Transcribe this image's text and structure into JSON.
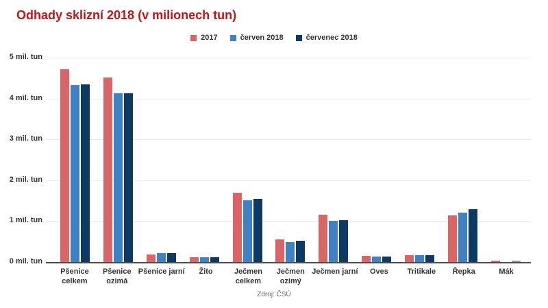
{
  "title": "Odhady sklizní 2018 (v milionech tun)",
  "source": "Zdroj: ČSÚ",
  "colors": {
    "title": "#c41414",
    "grid": "#e9e9e9",
    "axis_line": "#4d4d4d",
    "text": "#333333",
    "series_2017": "#d96666",
    "series_cerven": "#4081c4",
    "series_cervenec": "#0d3a63",
    "mak_cervenec_override": "#999999"
  },
  "chart_data": {
    "type": "bar",
    "title": "Odhady sklizní 2018 (v milionech tun)",
    "categories": [
      "Pšenice\ncelkem",
      "Pšenice\nozimá",
      "Pšenice jarní",
      "Žito",
      "Ječmen\ncelkem",
      "Ječmen\nozimý",
      "Ječmen jarní",
      "Oves",
      "Tritikale",
      "Řepka",
      "Mák"
    ],
    "series": [
      {
        "name": "2017",
        "color": "#d96666",
        "values": [
          4.72,
          4.52,
          0.19,
          0.12,
          1.7,
          0.56,
          1.15,
          0.15,
          0.17,
          1.14,
          0.04
        ]
      },
      {
        "name": "červen 2018",
        "color": "#4081c4",
        "values": [
          4.33,
          4.13,
          0.21,
          0.11,
          1.51,
          0.49,
          1.01,
          0.14,
          0.16,
          1.21,
          0
        ]
      },
      {
        "name": "červenec 2018",
        "color": "#0d3a63",
        "values": [
          4.35,
          4.13,
          0.21,
          0.11,
          1.55,
          0.52,
          1.03,
          0.14,
          0.16,
          1.29,
          0.03
        ]
      }
    ],
    "bar_color_overrides": [
      {
        "series_index": 2,
        "category_index": 10,
        "color": "#999999"
      }
    ],
    "yticks_top_to_bottom": [
      "5 mil. tun",
      "4 mil. tun",
      "3 mil. tun",
      "2 mil. tun",
      "1 mil. tun",
      "0 mil. tun"
    ],
    "ylim": [
      0,
      5
    ],
    "xlabel": "",
    "ylabel": "",
    "grid": true,
    "legend_position": "top"
  }
}
